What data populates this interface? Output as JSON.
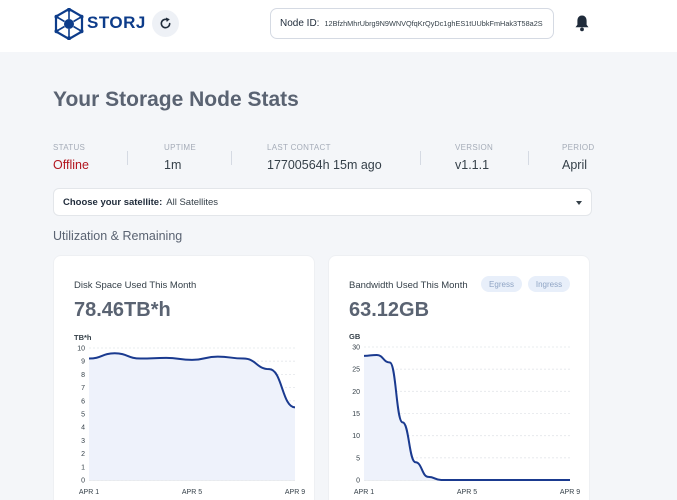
{
  "header": {
    "logo_text": "STORJ",
    "node_id_label": "Node ID:",
    "node_id_value": "12BfzhMhrUbrg9N9WNVQfqKrQyDc1ghES1tUUbkFmHak3T58a2S"
  },
  "page_title": "Your Storage Node Stats",
  "stats": {
    "status": {
      "label": "STATUS",
      "value": "Offline"
    },
    "uptime": {
      "label": "UPTIME",
      "value": "1m"
    },
    "last_contact": {
      "label": "LAST CONTACT",
      "value": "17700564h 15m ago"
    },
    "version": {
      "label": "VERSION",
      "value": "v1.1.1"
    },
    "period": {
      "label": "PERIOD",
      "value": "April"
    }
  },
  "satellite": {
    "label": "Choose your satellite:",
    "value": "All Satellites"
  },
  "section_title": "Utilization & Remaining",
  "disk_card": {
    "title": "Disk Space Used This Month",
    "value": "78.46TB*h"
  },
  "bandwidth_card": {
    "title": "Bandwidth Used This Month",
    "value": "63.12GB",
    "egress_label": "Egress",
    "ingress_label": "Ingress"
  },
  "colors": {
    "line": "#1a3a8f",
    "fill": "#eef2fb",
    "offline": "#b2161f",
    "brand": "#0d3c8a"
  },
  "chart_data": [
    {
      "type": "area",
      "ylabel": "TB*h",
      "ylim": [
        0,
        10
      ],
      "yticks": [
        0,
        1,
        2,
        3,
        4,
        5,
        6,
        7,
        8,
        9,
        10
      ],
      "xticks": [
        "APR 1",
        "APR 5",
        "APR 9"
      ],
      "x": [
        1,
        2,
        3,
        4,
        5,
        6,
        7,
        8,
        9
      ],
      "values": [
        9.2,
        9.6,
        9.2,
        9.25,
        9.1,
        9.35,
        9.2,
        8.4,
        5.5
      ]
    },
    {
      "type": "area",
      "ylabel": "GB",
      "ylim": [
        0,
        30
      ],
      "yticks": [
        0,
        5,
        10,
        15,
        20,
        25,
        30
      ],
      "xticks": [
        "APR 1",
        "APR 5",
        "APR 9"
      ],
      "x": [
        1,
        1.5,
        2,
        2.5,
        3,
        3.5,
        4,
        5,
        6,
        7,
        8,
        9
      ],
      "values": [
        28.0,
        28.2,
        26.5,
        13.0,
        4.0,
        0.7,
        0,
        0,
        0,
        0,
        0,
        0
      ]
    }
  ]
}
